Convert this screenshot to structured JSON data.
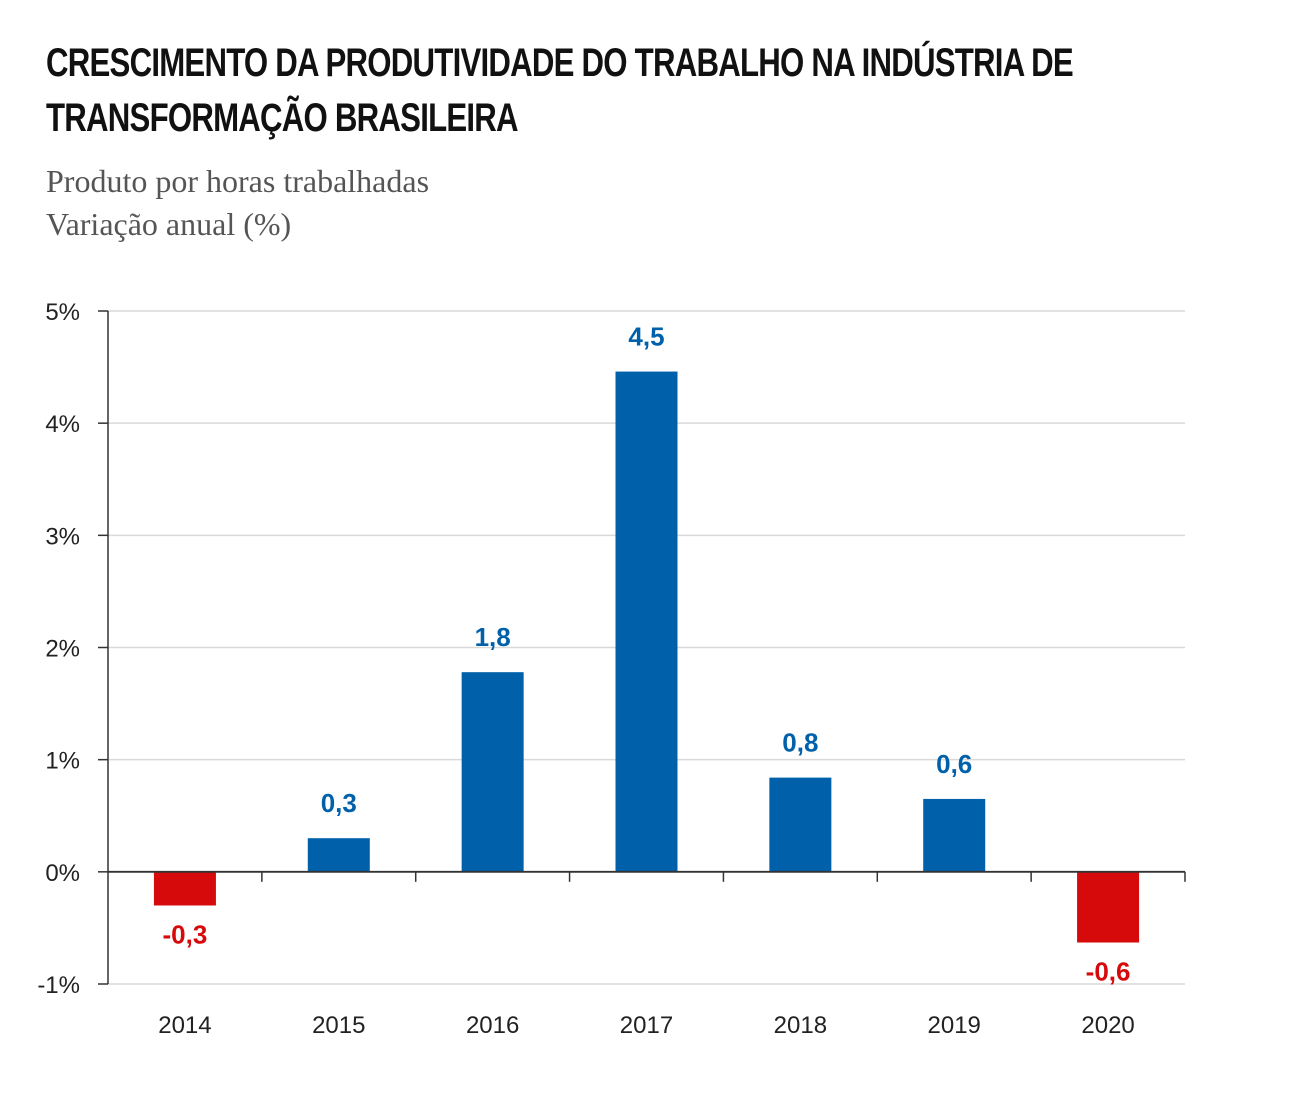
{
  "chart_data": {
    "type": "bar",
    "title": "CRESCIMENTO DA PRODUTIVIDADE DO TRABALHO NA INDÚSTRIA DE TRANSFORMAÇÃO BRASILEIRA",
    "title_line1": "CRESCIMENTO DA PRODUTIVIDADE DO TRABALHO NA INDÚSTRIA DE",
    "title_line2": "TRANSFORMAÇÃO BRASILEIRA",
    "subtitle_line1": "Produto por horas trabalhadas",
    "subtitle_line2": "Variação anual (%)",
    "categories": [
      "2014",
      "2015",
      "2016",
      "2017",
      "2018",
      "2019",
      "2020"
    ],
    "values": [
      -0.3,
      0.3,
      1.78,
      4.46,
      0.84,
      0.65,
      -0.63
    ],
    "data_labels": [
      "-0,3",
      "0,3",
      "1,8",
      "4,5",
      "0,8",
      "0,6",
      "-0,6"
    ],
    "ylim": [
      -1,
      5
    ],
    "yticks": [
      5,
      4,
      3,
      2,
      1,
      0,
      -1
    ],
    "ytick_labels": [
      "5%",
      "4%",
      "3%",
      "2%",
      "1%",
      "0%",
      "-1%"
    ],
    "xlabel": "",
    "ylabel": "",
    "grid": true,
    "colors": {
      "positive": "#0061aa",
      "negative": "#d60a0a",
      "grid": "#d9d9d9",
      "axis": "#333333"
    }
  }
}
